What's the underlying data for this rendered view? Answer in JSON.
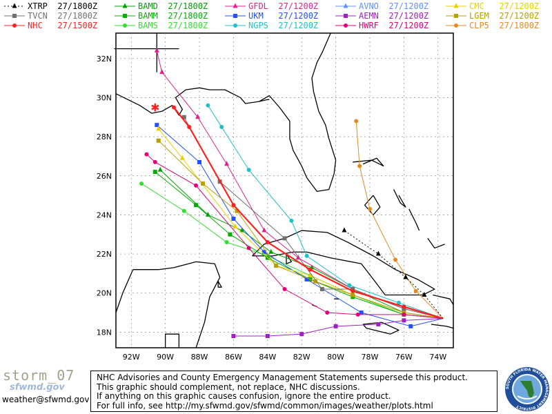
{
  "legend": [
    {
      "label": "XTRP",
      "time": "27/1800Z",
      "color": "#000000",
      "marker": "triangle",
      "dashed": true
    },
    {
      "label": "TVCN",
      "time": "27/1800Z",
      "color": "#707070",
      "marker": "square",
      "dashed": false
    },
    {
      "label": "NHC",
      "time": "27/1500Z",
      "color": "#ff2020",
      "marker": "circle",
      "dashed": false
    },
    {
      "label": "BAMD",
      "time": "27/1800Z",
      "color": "#00a000",
      "marker": "triangle",
      "dashed": false
    },
    {
      "label": "BAMM",
      "time": "27/1800Z",
      "color": "#00b000",
      "marker": "square",
      "dashed": false
    },
    {
      "label": "BAMS",
      "time": "27/1800Z",
      "color": "#33dd33",
      "marker": "circle",
      "dashed": false
    },
    {
      "label": "GFDL",
      "time": "27/1200Z",
      "color": "#e0208c",
      "marker": "triangle",
      "dashed": false
    },
    {
      "label": "UKM",
      "time": "27/1200Z",
      "color": "#2050ff",
      "marker": "square",
      "dashed": false
    },
    {
      "label": "NGPS",
      "time": "27/1200Z",
      "color": "#20c0c8",
      "marker": "circle",
      "dashed": false
    },
    {
      "label": "AVNO",
      "time": "27/1200Z",
      "color": "#6090ff",
      "marker": "triangle",
      "dashed": false
    },
    {
      "label": "AEMN",
      "time": "27/1200Z",
      "color": "#a020c0",
      "marker": "square",
      "dashed": false
    },
    {
      "label": "HWRF",
      "time": "27/1200Z",
      "color": "#e0007a",
      "marker": "circle",
      "dashed": false
    },
    {
      "label": "CMC",
      "time": "27/1200Z",
      "color": "#e8d000",
      "marker": "triangle",
      "dashed": false
    },
    {
      "label": "LGEM",
      "time": "27/1200Z",
      "color": "#b8a000",
      "marker": "square",
      "dashed": false
    },
    {
      "label": "CLP5",
      "time": "27/1800Z",
      "color": "#e88820",
      "marker": "circle",
      "dashed": false
    }
  ],
  "map": {
    "lon_labels": [
      "92W",
      "90W",
      "88W",
      "86W",
      "84W",
      "82W",
      "80W",
      "78W",
      "76W",
      "74W"
    ],
    "lat_labels": [
      "32N",
      "30N",
      "28N",
      "26N",
      "24N",
      "22N",
      "20N",
      "18N"
    ],
    "tracks": [
      {
        "model": "BAMS",
        "pts": [
          [
            -73.7,
            18.7
          ],
          [
            -76,
            18.9
          ],
          [
            -79,
            19.9
          ],
          [
            -81.5,
            20.9
          ],
          [
            -84,
            21.9
          ],
          [
            -86.4,
            22.6
          ],
          [
            -88.9,
            24.2
          ],
          [
            -91.4,
            25.6
          ]
        ]
      },
      {
        "model": "BAMM",
        "pts": [
          [
            -73.7,
            18.7
          ],
          [
            -76,
            18.9
          ],
          [
            -79,
            19.8
          ],
          [
            -81.5,
            20.7
          ],
          [
            -84,
            21.8
          ],
          [
            -86.2,
            23.0
          ],
          [
            -88.2,
            24.5
          ],
          [
            -90.6,
            26.2
          ]
        ]
      },
      {
        "model": "BAMD",
        "pts": [
          [
            -73.7,
            18.7
          ],
          [
            -76,
            19.0
          ],
          [
            -79,
            20.2
          ],
          [
            -81.4,
            21.3
          ],
          [
            -83.8,
            22.1
          ],
          [
            -85.5,
            23.2
          ],
          [
            -87.5,
            24.0
          ],
          [
            -90.3,
            26.3
          ]
        ]
      },
      {
        "model": "UKM",
        "pts": [
          [
            -73.7,
            18.7
          ],
          [
            -75.6,
            18.3
          ],
          [
            -78.5,
            19.0
          ],
          [
            -81.7,
            20.7
          ],
          [
            -84.2,
            22.1
          ],
          [
            -86,
            23.8
          ],
          [
            -88,
            26.7
          ],
          [
            -90.5,
            28.6
          ]
        ]
      },
      {
        "model": "GFDL",
        "pts": [
          [
            -73.7,
            18.7
          ],
          [
            -76,
            19.2
          ],
          [
            -79,
            20.2
          ],
          [
            -82.2,
            21.8
          ],
          [
            -84.2,
            23.2
          ],
          [
            -86.4,
            26.6
          ],
          [
            -88.1,
            29.0
          ],
          [
            -90.2,
            31.3
          ],
          [
            -90.5,
            32.4
          ]
        ]
      },
      {
        "model": "NGPS",
        "pts": [
          [
            -73.7,
            18.7
          ],
          [
            -76.3,
            19.5
          ],
          [
            -79.2,
            20.4
          ],
          [
            -81.7,
            21.9
          ],
          [
            -82.6,
            23.7
          ],
          [
            -85.1,
            26.3
          ],
          [
            -86.7,
            28.5
          ],
          [
            -87.5,
            29.6
          ]
        ]
      },
      {
        "model": "CMC",
        "pts": [
          [
            -73.7,
            18.7
          ],
          [
            -76,
            19.0
          ],
          [
            -79,
            19.9
          ],
          [
            -81.5,
            20.9
          ],
          [
            -83.5,
            21.4
          ],
          [
            -85.9,
            23.4
          ],
          [
            -89,
            26.9
          ],
          [
            -90.4,
            28.4
          ]
        ]
      },
      {
        "model": "LGEM",
        "pts": [
          [
            -73.7,
            18.7
          ],
          [
            -76,
            19.0
          ],
          [
            -79,
            19.9
          ],
          [
            -81.2,
            20.6
          ],
          [
            -83.5,
            21.4
          ],
          [
            -85.8,
            24.2
          ],
          [
            -87.8,
            25.6
          ],
          [
            -90.4,
            27.8
          ]
        ]
      },
      {
        "model": "HWRF",
        "pts": [
          [
            -73.7,
            18.7
          ],
          [
            -76,
            18.9
          ],
          [
            -78.7,
            18.9
          ],
          [
            -80.5,
            19.0
          ],
          [
            -83,
            20.2
          ],
          [
            -85.1,
            22.3
          ],
          [
            -88.2,
            25.5
          ],
          [
            -90.6,
            26.7
          ],
          [
            -91.1,
            27.1
          ]
        ]
      },
      {
        "model": "AEMN",
        "pts": [
          [
            -73.7,
            18.7
          ],
          [
            -76,
            18.6
          ],
          [
            -77.5,
            18.4
          ],
          [
            -80,
            18.3
          ],
          [
            -82,
            17.9
          ],
          [
            -84,
            17.8
          ],
          [
            -86,
            17.8
          ]
        ]
      },
      {
        "model": "TVCN",
        "pts": [
          [
            -73.7,
            18.7
          ],
          [
            -76,
            19.2
          ],
          [
            -79,
            20.2
          ],
          [
            -80.8,
            20.2
          ],
          [
            -83,
            22.8
          ],
          [
            -86.8,
            25.7
          ],
          [
            -88.9,
            29.0
          ]
        ]
      },
      {
        "model": "NHC",
        "pts": [
          [
            -73.7,
            18.7
          ],
          [
            -76,
            19.3
          ],
          [
            -79,
            20.1
          ],
          [
            -81.5,
            21.2
          ],
          [
            -84,
            22.6
          ],
          [
            -86,
            24.5
          ],
          [
            -88.6,
            28.5
          ],
          [
            -89.5,
            29.5
          ]
        ]
      },
      {
        "model": "CLP5",
        "pts": [
          [
            -73.7,
            18.7
          ],
          [
            -75.3,
            20.1
          ],
          [
            -76.5,
            21.7
          ],
          [
            -78,
            24.3
          ],
          [
            -78.6,
            26.5
          ],
          [
            -78.8,
            28.8
          ]
        ]
      },
      {
        "model": "XTRP",
        "pts": [
          [
            -73.7,
            18.7
          ],
          [
            -74.8,
            19.9
          ],
          [
            -75.9,
            20.8
          ],
          [
            -77.5,
            22.0
          ],
          [
            -79.5,
            23.2
          ]
        ]
      }
    ],
    "storm_marker": {
      "lon": -90.6,
      "lat": 29.5
    }
  },
  "footer": {
    "storm_name": "storm_07",
    "site_badge": "sfwmd.gov",
    "email": "weather@sfwmd.gov",
    "disclaimer_lines": [
      "NHC Advisories and County Emergency Management Statements supersede this product.",
      "This graphic should complement, not replace, NHC discussions.",
      "If anything on this graphic causes confusion, ignore the entire product.",
      "For full info, see  http://my.sfwmd.gov/sfwmd/common/images/weather/plots.html"
    ],
    "logo_text": "SOUTH FLORIDA WATER MANAGEMENT DISTRICT"
  }
}
